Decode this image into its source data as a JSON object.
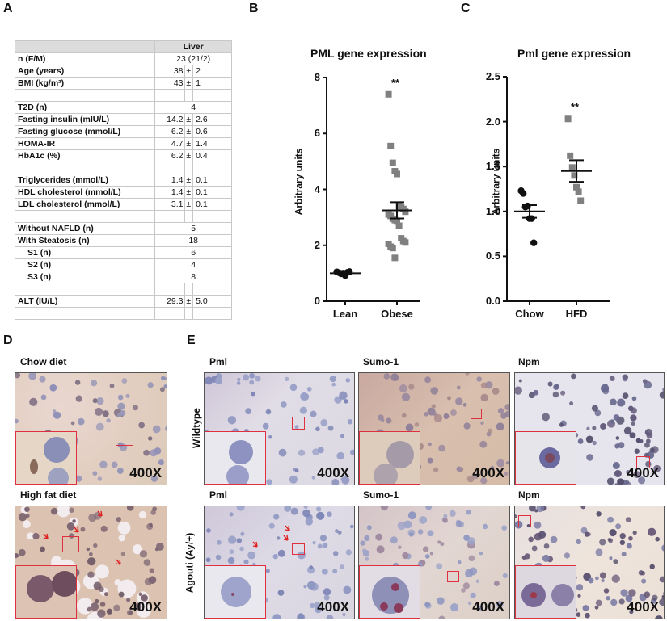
{
  "panels": {
    "A": {
      "letter": "A",
      "table": {
        "header": "Liver",
        "rows": [
          {
            "label": "n (F/M)",
            "value": "23 (21/2)",
            "type": "center"
          },
          {
            "label": "Age (years)",
            "mean": "38",
            "pm": "±",
            "err": "2",
            "type": "mse"
          },
          {
            "label": "BMI (kg/m²)",
            "mean": "43",
            "pm": "±",
            "err": "1",
            "type": "mse"
          },
          {
            "label": "",
            "type": "blank"
          },
          {
            "label": "T2D (n)",
            "value": "4",
            "type": "center"
          },
          {
            "label": "Fasting insulin (mIU/L)",
            "mean": "14.2",
            "pm": "±",
            "err": "2.6",
            "type": "mse"
          },
          {
            "label": "Fasting glucose (mmol/L)",
            "mean": "6.2",
            "pm": "±",
            "err": "0.6",
            "type": "mse"
          },
          {
            "label": "HOMA-IR",
            "mean": "4.7",
            "pm": "±",
            "err": "1.4",
            "type": "mse"
          },
          {
            "label": "HbA1c (%)",
            "mean": "6.2",
            "pm": "±",
            "err": "0.4",
            "type": "mse"
          },
          {
            "label": "",
            "type": "blank"
          },
          {
            "label": "Triglycerides (mmol/L)",
            "mean": "1.4",
            "pm": "±",
            "err": "0.1",
            "type": "mse"
          },
          {
            "label": "HDL cholesterol  (mmol/L)",
            "mean": "1.4",
            "pm": "±",
            "err": "0.1",
            "type": "mse"
          },
          {
            "label": "LDL cholesterol  (mmol/L)",
            "mean": "3.1",
            "pm": "±",
            "err": "0.1",
            "type": "mse"
          },
          {
            "label": "",
            "type": "blank"
          },
          {
            "label": "Without NAFLD (n)",
            "value": "5",
            "type": "center"
          },
          {
            "label": "With Steatosis  (n)",
            "value": "18",
            "type": "center"
          },
          {
            "label": "S1 (n)",
            "value": "6",
            "type": "center",
            "indent": true
          },
          {
            "label": "S2 (n)",
            "value": "4",
            "type": "center",
            "indent": true
          },
          {
            "label": "S3 (n)",
            "value": "8",
            "type": "center",
            "indent": true
          },
          {
            "label": "",
            "type": "blank"
          },
          {
            "label": "ALT (IU/L)",
            "mean": "29.3",
            "pm": "±",
            "err": "5.0",
            "type": "mse"
          },
          {
            "label": "",
            "type": "blank"
          }
        ]
      }
    },
    "B": {
      "letter": "B"
    },
    "C": {
      "letter": "C"
    },
    "D": {
      "letter": "D",
      "images": [
        {
          "title": "Chow diet",
          "magnification": "400X"
        },
        {
          "title": "High fat diet",
          "magnification": "400X"
        }
      ]
    },
    "E": {
      "letter": "E",
      "row_labels": [
        "Wildtype",
        "Agouti (Ay/+)"
      ],
      "columns": [
        "Pml",
        "Sumo-1",
        "Npm"
      ],
      "magnification": "400X"
    }
  },
  "chart_data": [
    {
      "type": "scatter",
      "panel": "B",
      "title": "PML gene expression",
      "xlabel": "",
      "ylabel": "Arbitrary units",
      "categories": [
        "Lean",
        "Obese"
      ],
      "yticks": [
        "0",
        "2",
        "4",
        "6",
        "8"
      ],
      "ylim": [
        0,
        8
      ],
      "grid": false,
      "significance": {
        "Obese": "**"
      },
      "series": [
        {
          "name": "Lean",
          "marker": "circle",
          "color": "#111111",
          "values": [
            1.05,
            1.02,
            0.98,
            1.0,
            0.92,
            1.03,
            1.06
          ],
          "mean": 1.0,
          "sem": 0.03
        },
        {
          "name": "Obese",
          "marker": "square",
          "color": "#808080",
          "values": [
            7.4,
            5.55,
            4.95,
            4.65,
            4.55,
            3.4,
            3.35,
            3.3,
            3.2,
            3.1,
            3.05,
            2.95,
            2.9,
            2.85,
            2.7,
            2.25,
            2.15,
            2.1,
            2.05,
            1.95,
            1.9,
            1.55
          ],
          "mean": 3.25,
          "sem": 0.29
        }
      ]
    },
    {
      "type": "scatter",
      "panel": "C",
      "title": "Pml gene expression",
      "xlabel": "",
      "ylabel": "Arbitrary units",
      "categories": [
        "Chow",
        "HFD"
      ],
      "yticks": [
        "0.0",
        "0.5",
        "1.0",
        "1.5",
        "2.0",
        "2.5"
      ],
      "ylim": [
        0,
        2.5
      ],
      "grid": false,
      "significance": {
        "HFD": "**"
      },
      "series": [
        {
          "name": "Chow",
          "marker": "circle",
          "color": "#111111",
          "values": [
            1.23,
            1.2,
            1.05,
            1.06,
            0.92,
            0.92,
            0.65
          ],
          "mean": 1.0,
          "sem": 0.07
        },
        {
          "name": "HFD",
          "marker": "square",
          "color": "#808080",
          "values": [
            2.03,
            1.62,
            1.49,
            1.4,
            1.27,
            1.22,
            1.12
          ],
          "mean": 1.45,
          "sem": 0.12
        }
      ]
    }
  ]
}
